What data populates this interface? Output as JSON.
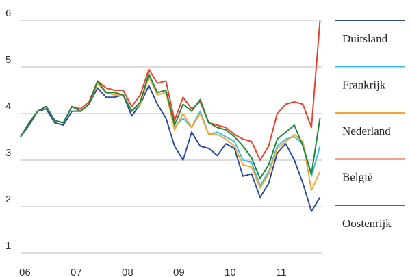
{
  "chart_data": {
    "type": "line",
    "categories": [
      "06",
      null,
      null,
      null,
      null,
      null,
      "07",
      null,
      null,
      null,
      null,
      null,
      "08",
      null,
      null,
      null,
      null,
      null,
      "09",
      null,
      null,
      null,
      null,
      null,
      "10",
      null,
      null,
      null,
      null,
      null,
      "11",
      null,
      null,
      null,
      null,
      null
    ],
    "series": [
      {
        "name": "Duitsland",
        "color": "#2b4c9f",
        "values": [
          3.5,
          3.75,
          4.05,
          4.1,
          3.8,
          3.75,
          4.05,
          4.05,
          4.2,
          4.55,
          4.35,
          4.35,
          4.4,
          3.95,
          4.2,
          4.6,
          4.2,
          3.9,
          3.3,
          3.0,
          3.6,
          3.3,
          3.25,
          3.1,
          3.35,
          3.25,
          2.65,
          2.7,
          2.2,
          2.5,
          3.15,
          3.35,
          3.0,
          2.5,
          1.9,
          2.2
        ]
      },
      {
        "name": "Frankrijk",
        "color": "#3fbfe8",
        "values": [
          3.5,
          3.8,
          4.05,
          4.15,
          3.85,
          3.8,
          4.15,
          4.05,
          4.2,
          4.65,
          4.45,
          4.4,
          4.4,
          4.05,
          4.2,
          4.8,
          4.4,
          4.45,
          3.7,
          3.9,
          3.7,
          4.05,
          3.55,
          3.6,
          3.5,
          3.4,
          3.0,
          2.95,
          2.45,
          2.75,
          3.3,
          3.45,
          3.5,
          3.35,
          2.65,
          3.3
        ]
      },
      {
        "name": "Nederland",
        "color": "#f5a733",
        "values": [
          3.5,
          3.8,
          4.05,
          4.15,
          3.85,
          3.8,
          4.15,
          4.05,
          4.2,
          4.65,
          4.45,
          4.4,
          4.4,
          4.05,
          4.2,
          4.8,
          4.4,
          4.45,
          3.65,
          4.0,
          3.7,
          4.0,
          3.55,
          3.55,
          3.45,
          3.3,
          2.9,
          2.85,
          2.4,
          2.7,
          3.25,
          3.4,
          3.55,
          3.4,
          2.35,
          2.75
        ]
      },
      {
        "name": "België",
        "color": "#e8432d",
        "values": [
          3.5,
          3.8,
          4.05,
          4.15,
          3.85,
          3.8,
          4.15,
          4.1,
          4.25,
          4.7,
          4.55,
          4.5,
          4.5,
          4.15,
          4.4,
          4.95,
          4.65,
          4.7,
          3.85,
          4.35,
          4.1,
          4.25,
          3.8,
          3.75,
          3.7,
          3.55,
          3.45,
          3.4,
          3.0,
          3.3,
          4.0,
          4.2,
          4.25,
          4.2,
          3.7,
          6.0
        ]
      },
      {
        "name": "Oostenrijk",
        "color": "#1f8a3e",
        "values": [
          3.5,
          3.8,
          4.05,
          4.15,
          3.85,
          3.8,
          4.15,
          4.05,
          4.2,
          4.7,
          4.45,
          4.45,
          4.4,
          4.05,
          4.25,
          4.85,
          4.45,
          4.5,
          3.75,
          4.2,
          4.05,
          4.3,
          3.8,
          3.7,
          3.65,
          3.5,
          3.3,
          3.05,
          2.6,
          2.9,
          3.45,
          3.6,
          3.75,
          3.3,
          2.7,
          3.9
        ]
      }
    ],
    "ylim": [
      1,
      6
    ],
    "yticks": [
      1,
      2,
      3,
      4,
      5,
      6
    ],
    "grid": true,
    "legend": "right"
  }
}
